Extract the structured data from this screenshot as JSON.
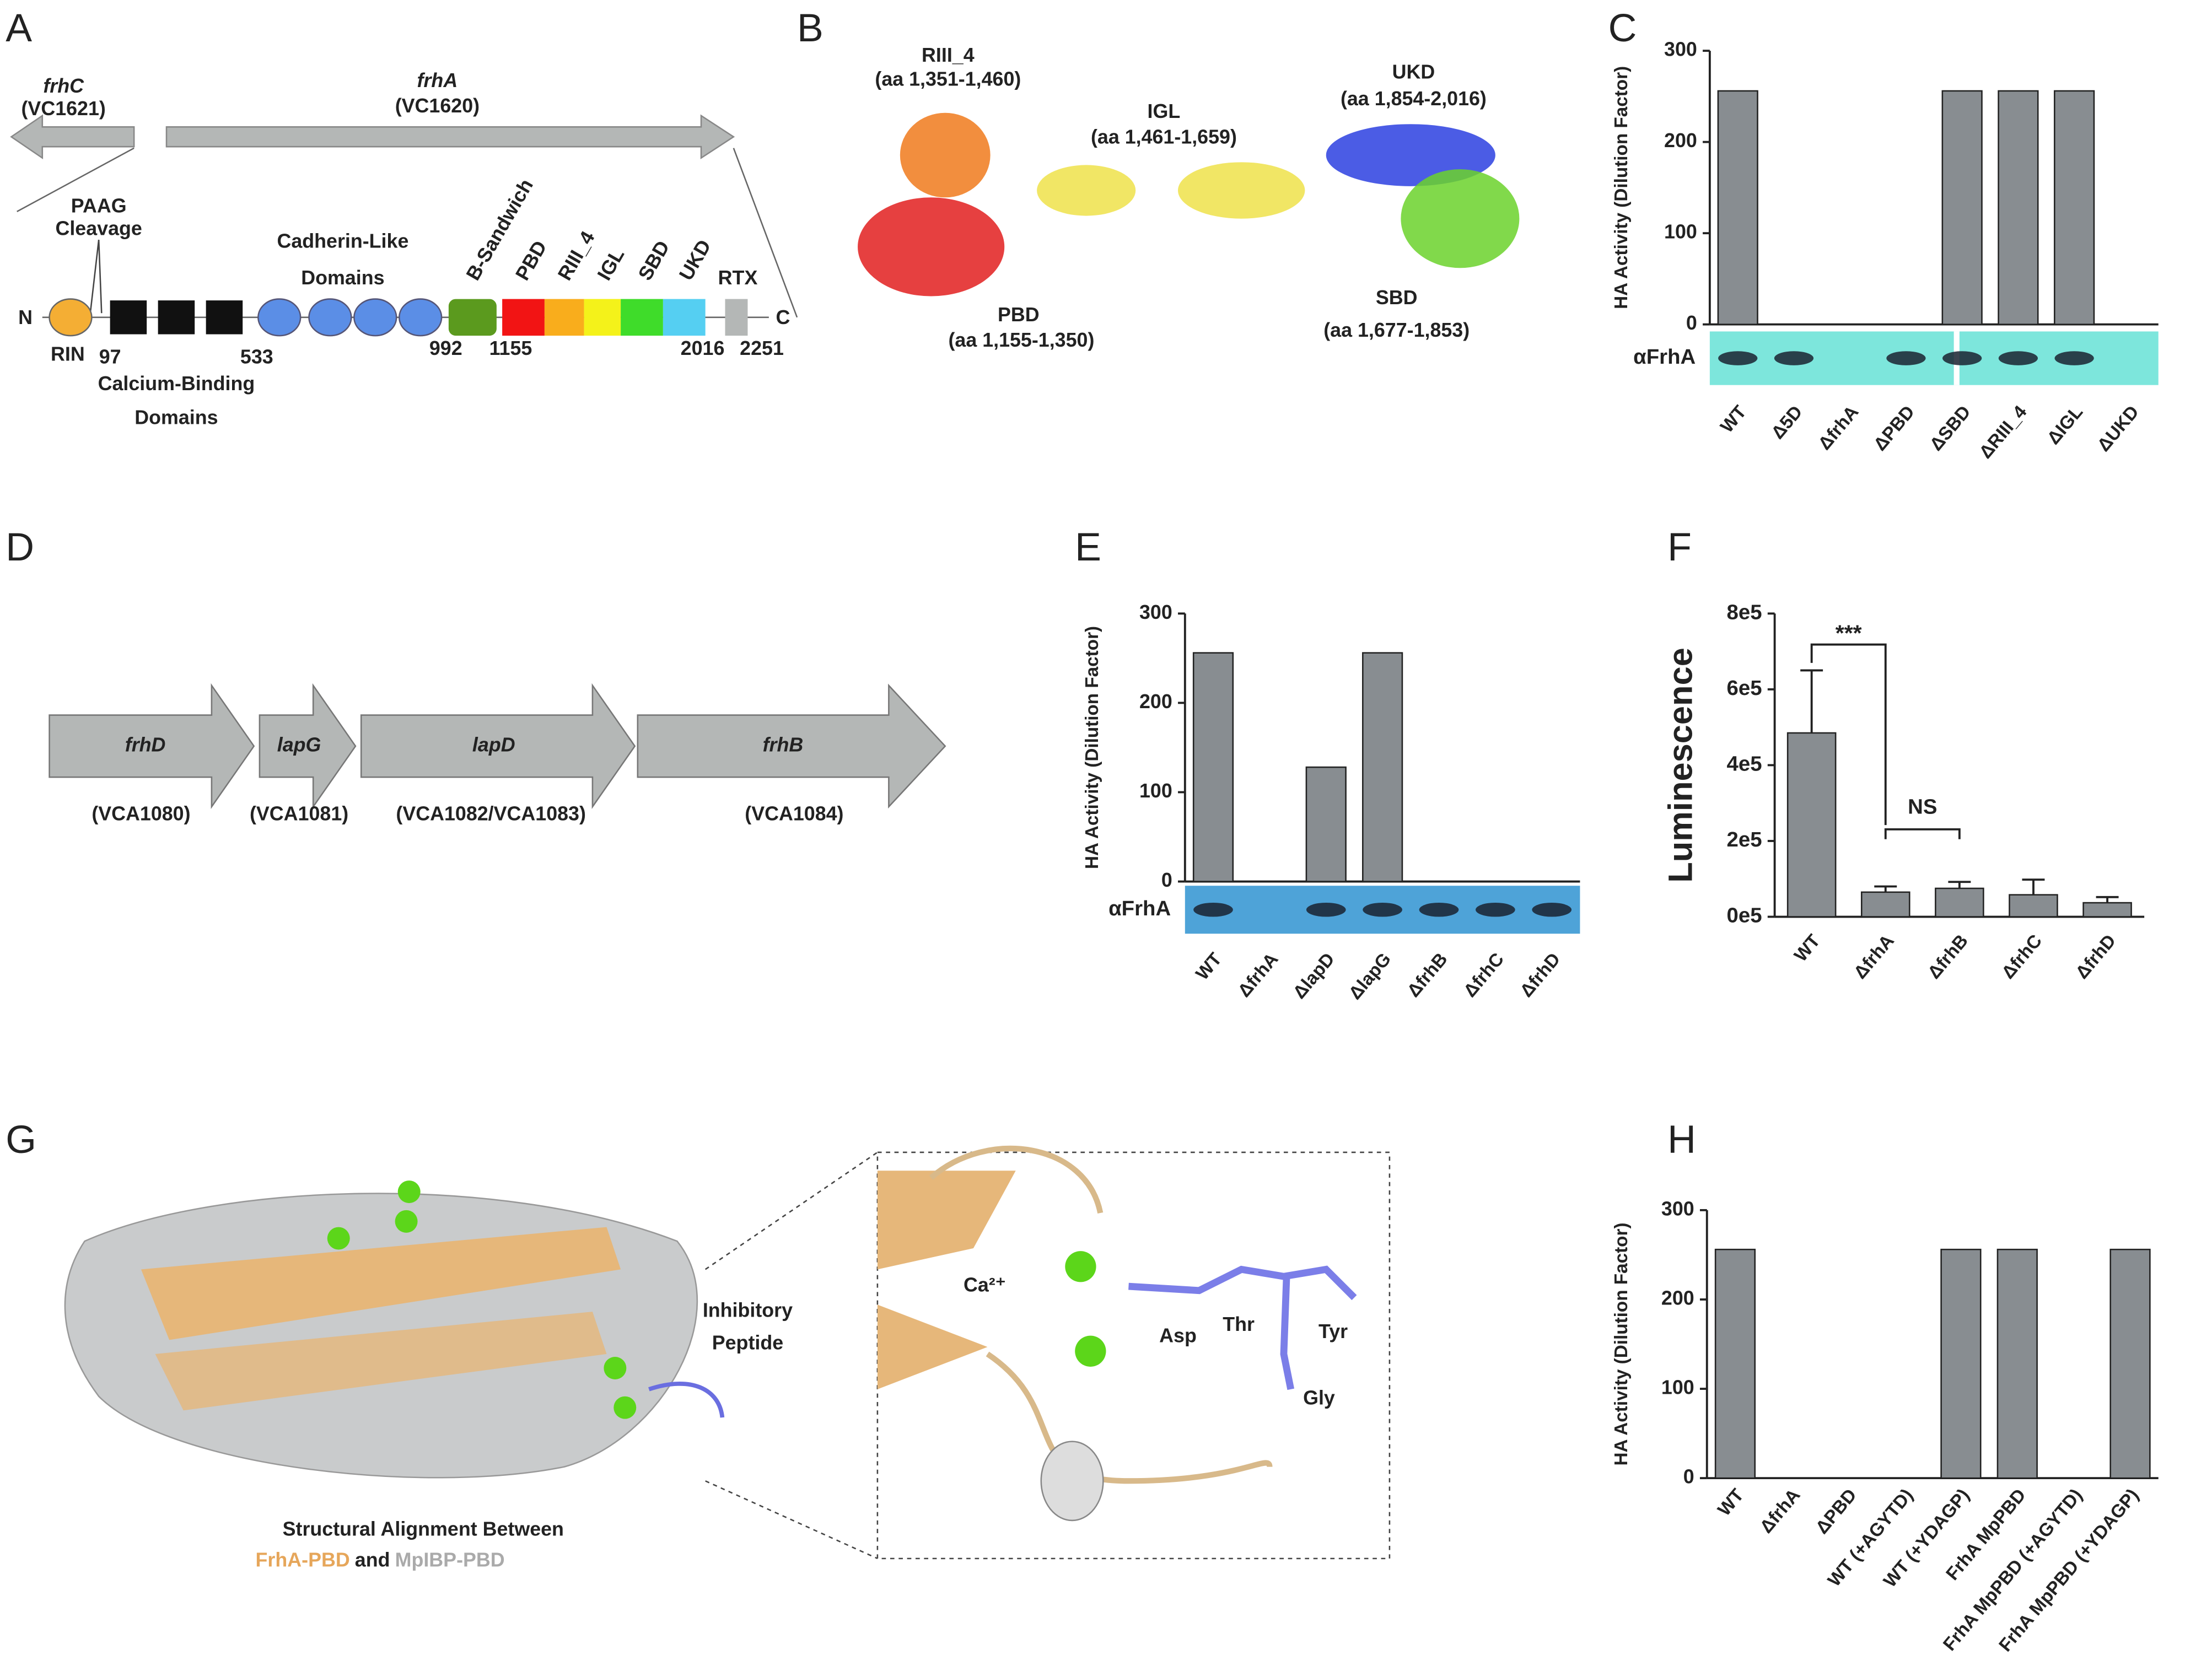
{
  "panel_labels": [
    "A",
    "B",
    "C",
    "D",
    "E",
    "F",
    "G",
    "H"
  ],
  "panel_a": {
    "gene_c": "frhC",
    "locus_c": "(VC1621)",
    "gene_a": "frhA",
    "locus_a": "(VC1620)",
    "paag": "PAAG",
    "cleavage": "Cleavage",
    "cadherin": "Cadherin-Like",
    "cadherin2": "Domains",
    "bsandwich": "B-Sandwich",
    "pbd": "PBD",
    "riii": "RIII_4",
    "igl": "IGL",
    "sbd": "SBD",
    "ukd": "UKD",
    "rtx": "RTX",
    "n": "N",
    "c": "C",
    "rin": "RIN",
    "p97": "97",
    "p533": "533",
    "p992": "992",
    "p1155": "1155",
    "p2016": "2016",
    "p2251": "2251",
    "calcium": "Calcium-Binding",
    "calcium2": "Domains"
  },
  "panel_b": {
    "labels": [
      {
        "name": "RIII_4",
        "range": "(aa 1,351-1,460)"
      },
      {
        "name": "IGL",
        "range": "(aa 1,461-1,659)"
      },
      {
        "name": "UKD",
        "range": "(aa 1,854-2,016)"
      },
      {
        "name": "PBD",
        "range": "(aa 1,155-1,350)"
      },
      {
        "name": "SBD",
        "range": "(aa 1,677-1,853)"
      }
    ]
  },
  "panel_d": {
    "genes": [
      {
        "name": "frhD",
        "locus": "(VCA1080)"
      },
      {
        "name": "lapG",
        "locus": "(VCA1081)"
      },
      {
        "name": "lapD",
        "locus": "(VCA1082/VCA1083)"
      },
      {
        "name": "frhB",
        "locus": "(VCA1084)"
      }
    ]
  },
  "panel_g": {
    "peptide": "Inhibitory",
    "peptide2": "Peptide",
    "caption": "Structural Alignment Between",
    "frha": "FrhA-PBD",
    "and": "and",
    "mpibp": "MpIBP-PBD",
    "ca": "Ca²⁺",
    "asp": "Asp",
    "thr": "Thr",
    "tyr": "Tyr",
    "gly": "Gly"
  },
  "chart_data": [
    {
      "type": "bar",
      "y_label": "HA Activity (Dilution Factor)",
      "blot_label": "αFrhA",
      "color": "#888d91",
      "categories": [
        "WT",
        "Δ5D",
        "ΔfrhA",
        "ΔPBD",
        "ΔSBD",
        "ΔRIII_4",
        "ΔIGL",
        "ΔUKD"
      ],
      "values": [
        256,
        0,
        0,
        0,
        256,
        256,
        256,
        0
      ],
      "ylim": [
        0,
        300
      ],
      "yticks": [
        0,
        100,
        200,
        300
      ]
    },
    {
      "type": "bar",
      "y_label": "HA Activity (Dilution Factor)",
      "blot_label": "αFrhA",
      "color": "#888d91",
      "categories": [
        "WT",
        "ΔfrhA",
        "ΔlapD",
        "ΔlapG",
        "ΔfrhB",
        "ΔfrhC",
        "ΔfrhD"
      ],
      "values": [
        256,
        0,
        128,
        256,
        0,
        0,
        0
      ],
      "ylim": [
        0,
        300
      ],
      "yticks": [
        0,
        100,
        200,
        300
      ]
    },
    {
      "type": "bar",
      "y_label": "Luminescence",
      "color": "#888d91",
      "categories": [
        "WT",
        "ΔfrhA",
        "ΔfrhB",
        "ΔfrhC",
        "ΔfrhD"
      ],
      "values": [
        485000,
        65000,
        75000,
        58000,
        37000
      ],
      "errors": [
        165000,
        15000,
        17000,
        40000,
        15000
      ],
      "ylim": [
        0,
        800000
      ],
      "yticks": [
        {
          "value": 0,
          "label": "0e5"
        },
        {
          "value": 200000,
          "label": "2e5"
        },
        {
          "value": 400000,
          "label": "4e5"
        },
        {
          "value": 600000,
          "label": "6e5"
        },
        {
          "value": 800000,
          "label": "8e5"
        }
      ],
      "annotations": [
        "***",
        "NS"
      ]
    },
    {
      "type": "bar",
      "y_label": "HA Activity (Dilution Factor)",
      "color": "#888d91",
      "categories": [
        "WT",
        "ΔfrhA",
        "ΔPBD",
        "WT (+AGYTD)",
        "WT (+YDAGP)",
        "FrhA MpPBD",
        "FrhA MpPBD (+AGYTD)",
        "FrhA MpPBD (+YDAGP)"
      ],
      "values": [
        256,
        0,
        0,
        0,
        256,
        256,
        0,
        256
      ],
      "ylim": [
        0,
        300
      ],
      "yticks": [
        0,
        100,
        200,
        300
      ]
    }
  ]
}
